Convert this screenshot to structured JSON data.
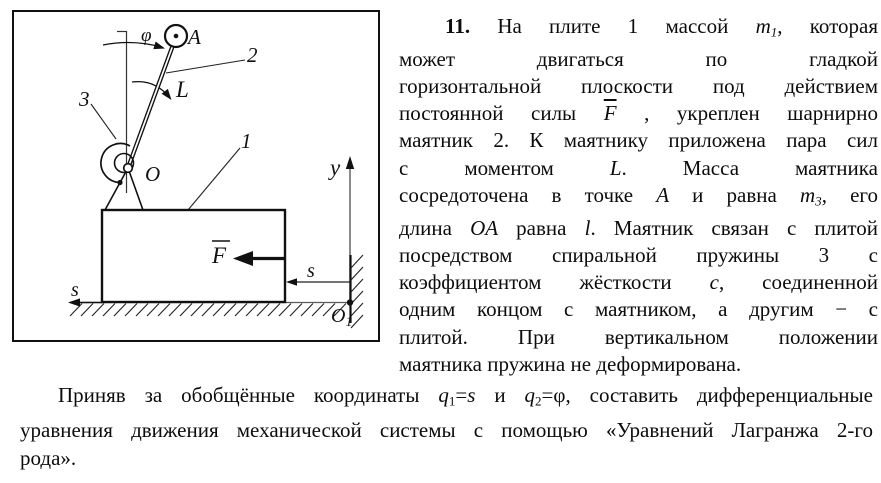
{
  "colors": {
    "ink": "#111111",
    "axis_gray": "#5a5a5a"
  },
  "figure": {
    "labels": {
      "phi": "φ",
      "mass_point": "A",
      "rod": "2",
      "moment": "L",
      "spring": "3",
      "pivot": "O",
      "plate": "1",
      "force": "F",
      "s_upper": "s",
      "s_axis": "s",
      "y_axis": "y",
      "origin_main": "O",
      "origin_sub": "1"
    }
  },
  "problem": {
    "lines": [
      [
        {
          "t": "11.",
          "c": "b"
        },
        {
          "t": " На плите 1 массой ",
          "c": ""
        },
        {
          "t": "m",
          "c": "i"
        },
        {
          "t": "1",
          "c": "isub"
        },
        {
          "t": ", которая",
          "c": ""
        }
      ],
      [
        {
          "t": "может двигаться по гладкой",
          "c": ""
        }
      ],
      [
        {
          "t": "горизонтальной плоскости под действием",
          "c": ""
        }
      ],
      [
        {
          "t": "постоянной силы ",
          "c": ""
        },
        {
          "t": "F",
          "c": "i bar"
        },
        {
          "t": " , укреплен шарнирно",
          "c": ""
        }
      ],
      [
        {
          "t": "маятник 2. К маятнику приложена пара сил",
          "c": ""
        }
      ],
      [
        {
          "t": "с моментом ",
          "c": ""
        },
        {
          "t": "L",
          "c": "i"
        },
        {
          "t": ". Масса маятника",
          "c": ""
        }
      ],
      [
        {
          "t": "сосредоточена в точке ",
          "c": ""
        },
        {
          "t": "A",
          "c": "i"
        },
        {
          "t": " и равна ",
          "c": ""
        },
        {
          "t": "m",
          "c": "i"
        },
        {
          "t": "3",
          "c": "isub"
        },
        {
          "t": ", его",
          "c": ""
        }
      ],
      [
        {
          "t": "длина ",
          "c": ""
        },
        {
          "t": "OA",
          "c": "i"
        },
        {
          "t": " равна ",
          "c": ""
        },
        {
          "t": "l",
          "c": "i"
        },
        {
          "t": ". Маятник связан с плитой",
          "c": ""
        }
      ],
      [
        {
          "t": "посредством спиральной пружины 3 с",
          "c": ""
        }
      ],
      [
        {
          "t": "коэффициентом жёсткости ",
          "c": ""
        },
        {
          "t": "c",
          "c": "i"
        },
        {
          "t": ", соединенной",
          "c": ""
        }
      ],
      [
        {
          "t": "одним концом с маятником, а другим − с",
          "c": ""
        }
      ],
      [
        {
          "t": "плитой. При вертикальном положении",
          "c": ""
        }
      ],
      [
        {
          "t": "маятника пружина не деформирована.",
          "c": ""
        }
      ]
    ]
  },
  "task": {
    "lines": [
      [
        {
          "t": "Приняв за обобщённые координаты ",
          "c": ""
        },
        {
          "t": "q",
          "c": "i"
        },
        {
          "t": "1",
          "c": "sub"
        },
        {
          "t": "=",
          "c": ""
        },
        {
          "t": "s",
          "c": "i"
        },
        {
          "t": " и ",
          "c": ""
        },
        {
          "t": "q",
          "c": "i"
        },
        {
          "t": "2",
          "c": "sub"
        },
        {
          "t": "=φ, составить дифференциальные",
          "c": ""
        }
      ],
      [
        {
          "t": "уравнения движения механической системы с помощью «Уравнений Лагранжа 2-го",
          "c": ""
        }
      ],
      [
        {
          "t": "рода».",
          "c": ""
        }
      ]
    ]
  }
}
